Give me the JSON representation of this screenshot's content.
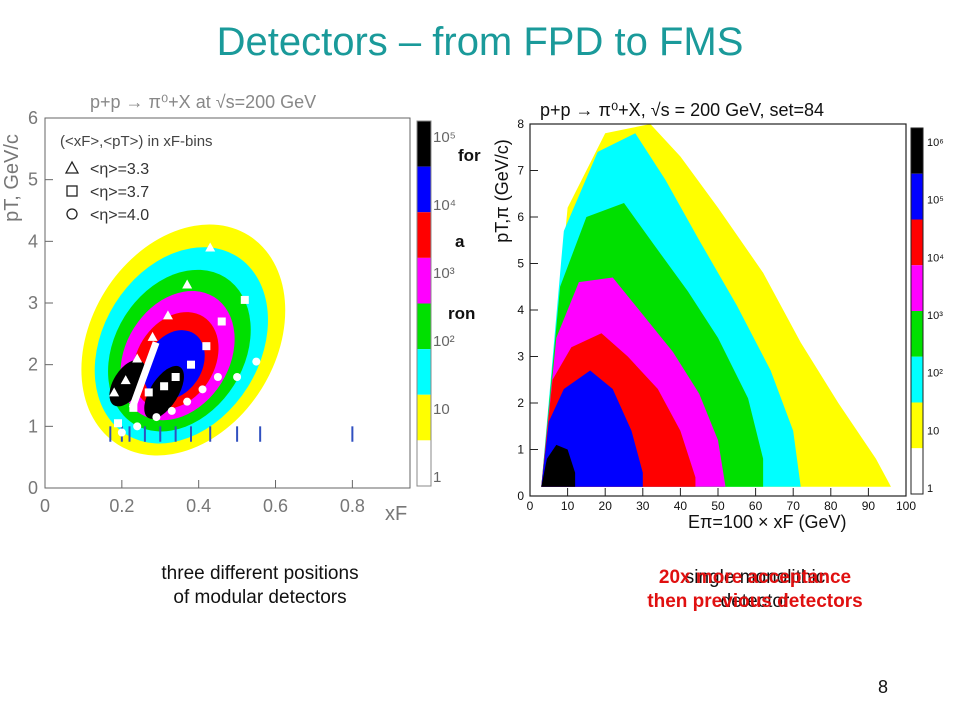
{
  "slide": {
    "title": "Detectors – from FPD to FMS",
    "page_number": "8",
    "left_caption_line1": "three different positions",
    "left_caption_line2": "of modular detectors",
    "right_caption_line1": "single monolithic",
    "right_caption_line2": "detector",
    "right_caption_overlay_line1": "20x more acceptance",
    "right_caption_overlay_line2": "then previous detectors",
    "hidden_text_fragments": [
      "for",
      "a",
      "ron"
    ]
  },
  "left_plot": {
    "title": "p+p → π⁰+X at √s=200 GeV",
    "ylabel": "pT, GeV/c",
    "xlabel": "xF",
    "legend_title": "(<xF>,<pT>) in xF-bins",
    "legend": [
      {
        "marker": "triangle",
        "label": "<η>=3.3"
      },
      {
        "marker": "square",
        "label": "<η>=3.7"
      },
      {
        "marker": "circle",
        "label": "<η>=4.0"
      }
    ],
    "x_ticks": [
      "0",
      "0.2",
      "0.4",
      "0.6",
      "0.8"
    ],
    "y_ticks": [
      "0",
      "1",
      "2",
      "3",
      "4",
      "5",
      "6"
    ],
    "colorbar_labels": [
      "1",
      "10",
      "10²",
      "10³",
      "10⁴",
      "10⁵"
    ]
  },
  "right_plot": {
    "title": "p+p → π⁰+X, √s = 200 GeV, set=84",
    "ylabel": "pT,π (GeV/c)",
    "xlabel": "Eπ=100 × xF (GeV)",
    "x_ticks": [
      "0",
      "10",
      "20",
      "30",
      "40",
      "50",
      "60",
      "70",
      "80",
      "90",
      "100"
    ],
    "y_ticks": [
      "0",
      "1",
      "2",
      "3",
      "4",
      "5",
      "6",
      "7",
      "8"
    ],
    "colorbar_labels": [
      "1",
      "10",
      "10²",
      "10³",
      "10⁴",
      "10⁵",
      "10⁶"
    ]
  },
  "colors": {
    "title": "#1a9a9a",
    "accent": "#e01010",
    "palette": [
      "#ffffff",
      "#ffff00",
      "#00ffff",
      "#00e000",
      "#ff00ff",
      "#ff0000",
      "#0000ff",
      "#000000"
    ]
  }
}
